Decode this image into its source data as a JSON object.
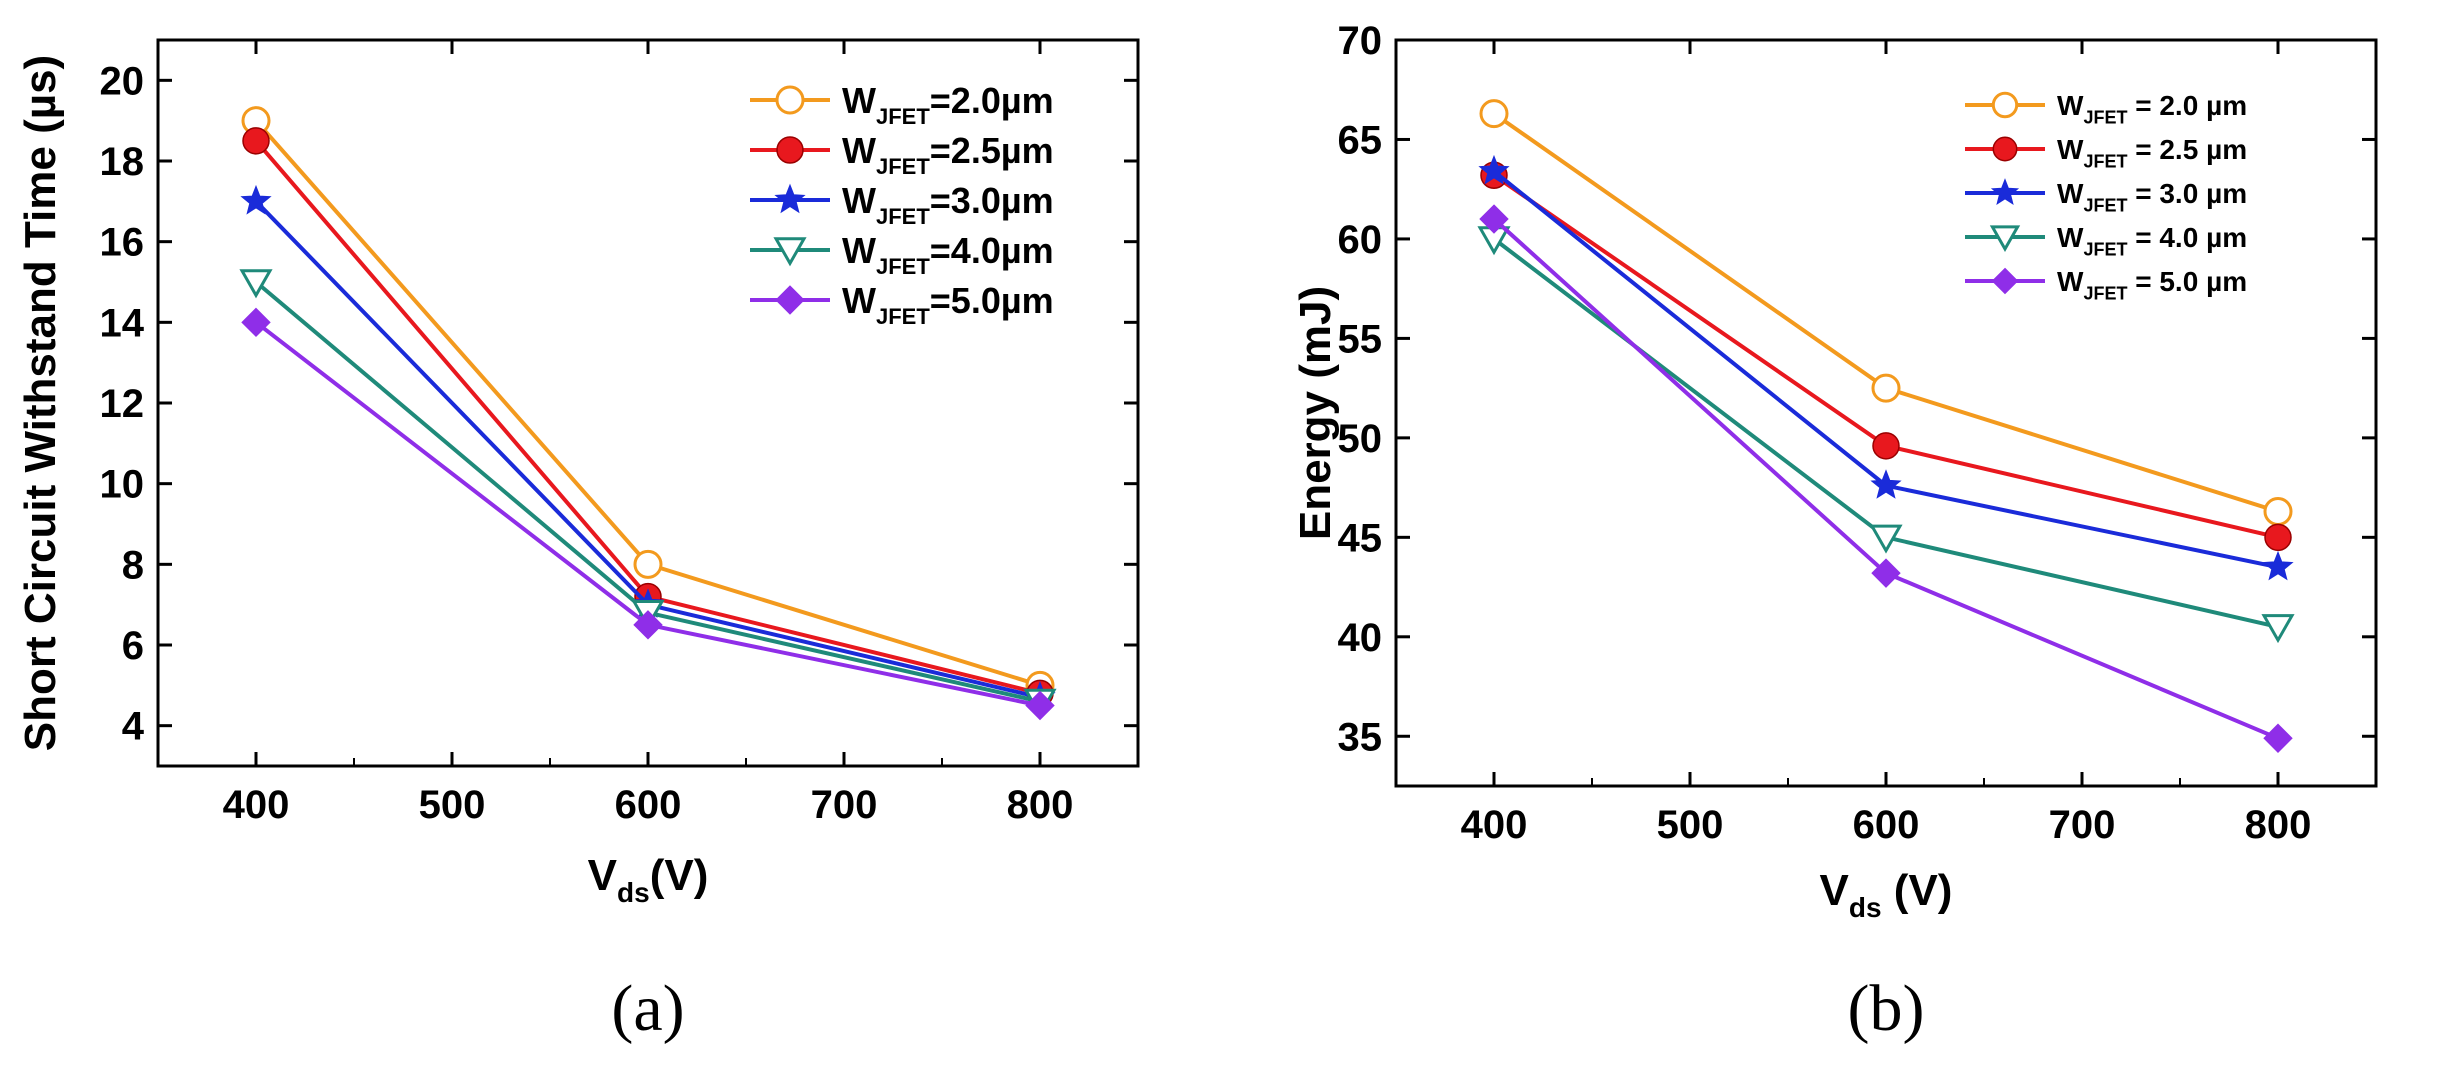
{
  "chart_data": [
    {
      "type": "line",
      "panel_label": "(a)",
      "title": "",
      "ylabel": "Short Circuit Withstand Time (µs)",
      "xlabel": {
        "main": "V",
        "sub": "ds",
        "tail": "(V)"
      },
      "xlim": [
        350,
        850
      ],
      "ylim": [
        3,
        21
      ],
      "xticks": [
        400,
        500,
        600,
        700,
        800
      ],
      "yticks": [
        4,
        6,
        8,
        10,
        12,
        14,
        16,
        18,
        20
      ],
      "x": [
        400,
        600,
        800
      ],
      "legend_position": "top-right",
      "series": [
        {
          "name": "W_JFET=2.0µm",
          "label_main": "W",
          "label_sub": "JFET",
          "label_tail": "=2.0µm",
          "color": "#f39a1e",
          "marker": "open-circle",
          "values": [
            19.0,
            8.0,
            5.0
          ]
        },
        {
          "name": "W_JFET=2.5µm",
          "label_main": "W",
          "label_sub": "JFET",
          "label_tail": "=2.5µm",
          "color": "#e8181e",
          "marker": "filled-circle",
          "values": [
            18.5,
            7.2,
            4.8
          ]
        },
        {
          "name": "W_JFET=3.0µm",
          "label_main": "W",
          "label_sub": "JFET",
          "label_tail": "=3.0µm",
          "color": "#1a2bd9",
          "marker": "star",
          "values": [
            17.0,
            7.0,
            4.7
          ]
        },
        {
          "name": "W_JFET=4.0µm",
          "label_main": "W",
          "label_sub": "JFET",
          "label_tail": "=4.0µm",
          "color": "#1f8a7a",
          "marker": "open-down-triangle",
          "values": [
            15.0,
            6.8,
            4.6
          ]
        },
        {
          "name": "W_JFET=5.0µm",
          "label_main": "W",
          "label_sub": "JFET",
          "label_tail": "=5.0µm",
          "color": "#8f2ee8",
          "marker": "diamond",
          "values": [
            14.0,
            6.5,
            4.5
          ]
        }
      ]
    },
    {
      "type": "line",
      "panel_label": "(b)",
      "title": "",
      "ylabel": "Energy (mJ)",
      "xlabel": {
        "main": "V",
        "sub": "ds",
        "tail": " (V)"
      },
      "xlim": [
        350,
        850
      ],
      "ylim": [
        32.5,
        70
      ],
      "xticks": [
        400,
        500,
        600,
        700,
        800
      ],
      "yticks": [
        35,
        40,
        45,
        50,
        55,
        60,
        65,
        70
      ],
      "x": [
        400,
        600,
        800
      ],
      "legend_position": "top-right",
      "series": [
        {
          "name": "W_JFET = 2.0 µm",
          "label_main": "W",
          "label_sub": "JFET",
          "label_tail": " = 2.0 µm",
          "color": "#f39a1e",
          "marker": "open-circle",
          "values": [
            66.3,
            52.5,
            46.3
          ]
        },
        {
          "name": "W_JFET = 2.5 µm",
          "label_main": "W",
          "label_sub": "JFET",
          "label_tail": " = 2.5 µm",
          "color": "#e8181e",
          "marker": "filled-circle",
          "values": [
            63.2,
            49.6,
            45.0
          ]
        },
        {
          "name": "W_JFET = 3.0 µm",
          "label_main": "W",
          "label_sub": "JFET",
          "label_tail": " = 3.0 µm",
          "color": "#1a2bd9",
          "marker": "star",
          "values": [
            63.4,
            47.6,
            43.5
          ]
        },
        {
          "name": "W_JFET = 4.0 µm",
          "label_main": "W",
          "label_sub": "JFET",
          "label_tail": " = 4.0 µm",
          "color": "#1f8a7a",
          "marker": "open-down-triangle",
          "values": [
            60.0,
            45.0,
            40.5
          ]
        },
        {
          "name": "W_JFET = 5.0 µm",
          "label_main": "W",
          "label_sub": "JFET",
          "label_tail": " = 5.0 µm",
          "color": "#8f2ee8",
          "marker": "diamond",
          "values": [
            61.0,
            43.2,
            34.9
          ]
        }
      ]
    }
  ]
}
